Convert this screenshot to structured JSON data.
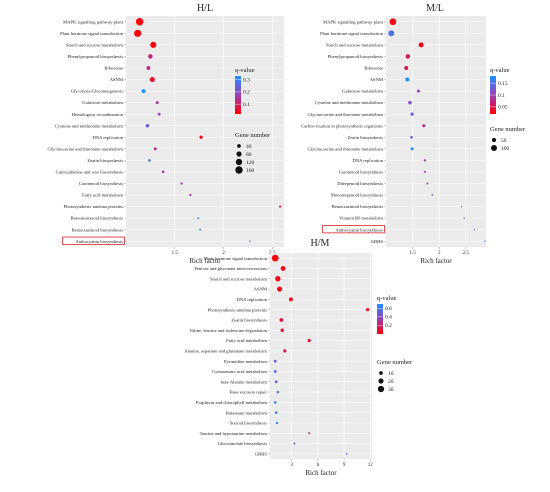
{
  "chart_data": [
    {
      "type": "scatter",
      "title": "H/L",
      "xlabel": "Rich factor",
      "xlim": [
        1.0,
        2.62
      ],
      "xticks": [
        1.5,
        2.0,
        2.5
      ],
      "color_legend": {
        "title": "q-value",
        "ticks": [
          0.3,
          0.2,
          0.1
        ],
        "range": [
          0.02,
          0.33
        ],
        "low_color": "#ff0000",
        "high_color": "#1e90ff"
      },
      "size_legend": {
        "title": "Gene number",
        "values": [
          40,
          80,
          120,
          160
        ]
      },
      "highlighted": "Anthocyanin biosynthesis",
      "points": [
        {
          "term": "MAPK signalling pathway-plant",
          "rich": 1.14,
          "q": 0.03,
          "genes": 165
        },
        {
          "term": "Plant hormone signal transduction",
          "rich": 1.12,
          "q": 0.03,
          "genes": 150
        },
        {
          "term": "Starch and sucrose metabolism",
          "rich": 1.28,
          "q": 0.03,
          "genes": 110
        },
        {
          "term": "Phenylpropanoid biosynthesis",
          "rich": 1.25,
          "q": 0.12,
          "genes": 60
        },
        {
          "term": "Ribosome",
          "rich": 1.23,
          "q": 0.13,
          "genes": 45
        },
        {
          "term": "ASNM",
          "rich": 1.27,
          "q": 0.05,
          "genes": 75
        },
        {
          "term": "Glycolysis/Gluconeogenesis",
          "rich": 1.18,
          "q": 0.33,
          "genes": 45
        },
        {
          "term": "Galactose metabolism",
          "rich": 1.32,
          "q": 0.16,
          "genes": 25
        },
        {
          "term": "Homologous recombination",
          "rich": 1.34,
          "q": 0.19,
          "genes": 25
        },
        {
          "term": "Cysteine and methionine metabolism",
          "rich": 1.22,
          "q": 0.25,
          "genes": 35
        },
        {
          "term": "DNA replication",
          "rich": 1.77,
          "q": 0.03,
          "genes": 30
        },
        {
          "term": "Glycine,serine and threonine metabolism",
          "rich": 1.3,
          "q": 0.13,
          "genes": 25
        },
        {
          "term": "Zeatin biosynthesis",
          "rich": 1.24,
          "q": 0.28,
          "genes": 20
        },
        {
          "term": "Cutin,suberine and wax biosynthesis",
          "rich": 1.38,
          "q": 0.16,
          "genes": 20
        },
        {
          "term": "Carotenoid biosynthesis",
          "rich": 1.57,
          "q": 0.14,
          "genes": 15
        },
        {
          "term": "Fatty acid metabolism",
          "rich": 1.66,
          "q": 0.16,
          "genes": 15
        },
        {
          "term": "Photosynthesis-antenna proteins",
          "rich": 2.58,
          "q": 0.02,
          "genes": 12
        },
        {
          "term": "Brassinosteroid biosynthesis",
          "rich": 1.74,
          "q": 0.31,
          "genes": 10
        },
        {
          "term": "Benzoxazinoid biosynthesis",
          "rich": 1.76,
          "q": 0.27,
          "genes": 10
        },
        {
          "term": "Anthocyanin biosynthesis",
          "rich": 2.27,
          "q": 0.22,
          "genes": 5
        }
      ]
    },
    {
      "type": "scatter",
      "title": "M/L",
      "xlabel": "Rich factor",
      "xlim": [
        1.0,
        2.88
      ],
      "xticks": [
        1.5,
        2.0,
        2.5
      ],
      "color_legend": {
        "title": "q-value",
        "ticks": [
          0.15,
          0.1,
          0.05
        ],
        "range": [
          0.02,
          0.18
        ],
        "low_color": "#ff0000",
        "high_color": "#1e90ff"
      },
      "size_legend": {
        "title": "Gene number",
        "values": [
          50,
          100
        ]
      },
      "highlighted": "Anthocyanin biosynthesis",
      "points": [
        {
          "term": "MAPK signalling pathway-plant",
          "rich": 1.13,
          "q": 0.03,
          "genes": 130
        },
        {
          "term": "Plant hormone signal transduction",
          "rich": 1.1,
          "q": 0.15,
          "genes": 100
        },
        {
          "term": "Starch and sucrose metabolism",
          "rich": 1.66,
          "q": 0.03,
          "genes": 70
        },
        {
          "term": "Phenylpropanoid biosynthesis",
          "rich": 1.41,
          "q": 0.06,
          "genes": 60
        },
        {
          "term": "Ribosome",
          "rich": 1.38,
          "q": 0.05,
          "genes": 45
        },
        {
          "term": "ASNM",
          "rich": 1.4,
          "q": 0.18,
          "genes": 45
        },
        {
          "term": "Galactose metabolism",
          "rich": 1.61,
          "q": 0.1,
          "genes": 25
        },
        {
          "term": "Cysteine and methionine metabolism",
          "rich": 1.45,
          "q": 0.12,
          "genes": 35
        },
        {
          "term": "Glycine,serine and threonine metabolism",
          "rich": 1.49,
          "q": 0.14,
          "genes": 30
        },
        {
          "term": "Carbon fixation in photosynthetic organisms",
          "rich": 1.71,
          "q": 0.07,
          "genes": 25
        },
        {
          "term": "Zeatin biosynthesis",
          "rich": 1.48,
          "q": 0.13,
          "genes": 20
        },
        {
          "term": "Glycine,serine and threonine metabolism",
          "rich": 1.49,
          "q": 0.17,
          "genes": 25
        },
        {
          "term": "DNA replication",
          "rich": 1.73,
          "q": 0.09,
          "genes": 15
        },
        {
          "term": "Carotenoid biosynthesis",
          "rich": 1.73,
          "q": 0.1,
          "genes": 12
        },
        {
          "term": "Diterpenoid biosynthesis",
          "rich": 1.78,
          "q": 0.11,
          "genes": 10
        },
        {
          "term": "Monoterpenoid biosynthesis",
          "rich": 1.87,
          "q": 0.12,
          "genes": 8
        },
        {
          "term": "Benzoxazinoid biosynthesis",
          "rich": 2.42,
          "q": 0.13,
          "genes": 5
        },
        {
          "term": "Vitamin B6 metabolism",
          "rich": 2.47,
          "q": 0.14,
          "genes": 5
        },
        {
          "term": "Anthocyanin biosynthesis",
          "rich": 2.66,
          "q": 0.15,
          "genes": 4
        },
        {
          "term": "GBHS",
          "rich": 2.86,
          "q": 0.16,
          "genes": 3
        }
      ]
    },
    {
      "type": "scatter",
      "title": "H/M",
      "xlabel": "Rich factor",
      "xlim": [
        0.5,
        12.2
      ],
      "xticks": [
        3,
        6,
        9,
        12
      ],
      "color_legend": {
        "title": "q-value",
        "ticks": [
          0.6,
          0.4,
          0.2
        ],
        "range": [
          0.0,
          0.7
        ],
        "low_color": "#ff0000",
        "high_color": "#1e90ff"
      },
      "size_legend": {
        "title": "Gene number",
        "values": [
          10,
          20,
          30
        ]
      },
      "points": [
        {
          "term": "Plant hormone signal transduction",
          "rich": 1.1,
          "q": 0.02,
          "genes": 35
        },
        {
          "term": "Pentose and gluconate interconversions",
          "rich": 2.0,
          "q": 0.05,
          "genes": 18
        },
        {
          "term": "Starch and sucrose metabolism",
          "rich": 1.4,
          "q": 0.05,
          "genes": 22
        },
        {
          "term": "ASNM",
          "rich": 1.6,
          "q": 0.05,
          "genes": 20
        },
        {
          "term": "DNA replication",
          "rich": 2.9,
          "q": 0.05,
          "genes": 12
        },
        {
          "term": "Photosynthesis-antenna proteins",
          "rich": 11.7,
          "q": 0.05,
          "genes": 8
        },
        {
          "term": "Zeatin biosynthesis",
          "rich": 1.8,
          "q": 0.1,
          "genes": 10
        },
        {
          "term": "Valine, leucine and isoleucine degradation",
          "rich": 1.9,
          "q": 0.1,
          "genes": 9
        },
        {
          "term": "Fatty acid metabolism",
          "rich": 5.0,
          "q": 0.1,
          "genes": 8
        },
        {
          "term": "Alanine, aspartate and glutamate metabolism",
          "rich": 2.2,
          "q": 0.15,
          "genes": 8
        },
        {
          "term": "Pyrimidine metabolism",
          "rich": 1.1,
          "q": 0.5,
          "genes": 6
        },
        {
          "term": "Cyanoamino acid metabolism",
          "rich": 1.1,
          "q": 0.55,
          "genes": 6
        },
        {
          "term": "beta-Alanine metabolism",
          "rich": 1.2,
          "q": 0.5,
          "genes": 6
        },
        {
          "term": "Base excision repair",
          "rich": 1.4,
          "q": 0.55,
          "genes": 5
        },
        {
          "term": "Porphyrin and chlorophyll metabolism",
          "rich": 1.1,
          "q": 0.6,
          "genes": 5
        },
        {
          "term": "Butanoate metabolism",
          "rich": 1.2,
          "q": 0.6,
          "genes": 5
        },
        {
          "term": "Steroid biosynthesis",
          "rich": 1.3,
          "q": 0.65,
          "genes": 4
        },
        {
          "term": "Taurine and hypotaurine metabolism",
          "rich": 5.0,
          "q": 0.2,
          "genes": 3
        },
        {
          "term": "Glucosinolate biosynthesis",
          "rich": 3.3,
          "q": 0.45,
          "genes": 3
        },
        {
          "term": "GBHS",
          "rich": 9.3,
          "q": 0.5,
          "genes": 2
        }
      ]
    }
  ]
}
